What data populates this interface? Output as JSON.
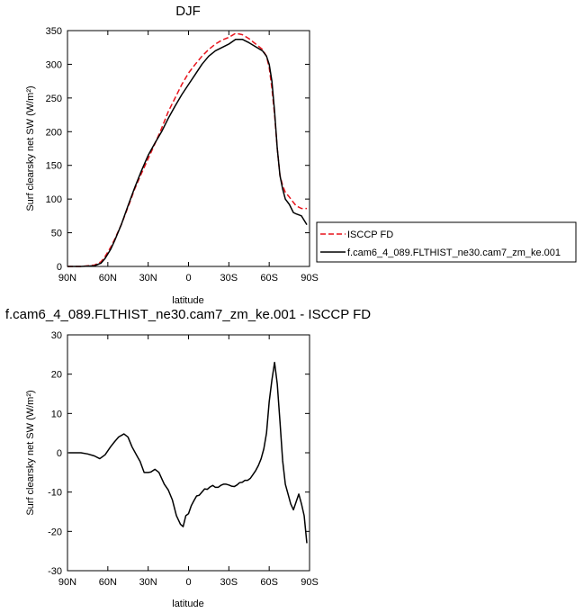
{
  "colors": {
    "obs": "#e8141c",
    "model": "#000000",
    "diff": "#000000"
  },
  "chart_data": [
    {
      "type": "line",
      "title": "DJF",
      "xlabel": "latitude",
      "ylabel": "Surf clearsky net SW (W/m²)",
      "xlim": [
        90,
        -90
      ],
      "ylim": [
        0,
        350
      ],
      "xticks": [
        90,
        60,
        30,
        0,
        -30,
        -60,
        -90
      ],
      "xtick_labels": [
        "90N",
        "60N",
        "30N",
        "0",
        "30S",
        "60S",
        "90S"
      ],
      "yticks": [
        0,
        50,
        100,
        150,
        200,
        250,
        300,
        350
      ],
      "ytick_labels": [
        "0",
        "50",
        "100",
        "150",
        "200",
        "250",
        "300",
        "350"
      ],
      "legend_position": "right",
      "series": [
        {
          "name": "ISCCP FD",
          "style": "dashed",
          "color": "#e8141c",
          "x": [
            90,
            80,
            70,
            65,
            62,
            58,
            55,
            50,
            45,
            40,
            35,
            30,
            25,
            20,
            15,
            10,
            5,
            0,
            -5,
            -10,
            -15,
            -20,
            -25,
            -30,
            -35,
            -40,
            -45,
            -50,
            -55,
            -58,
            -60,
            -62,
            -64,
            -66,
            -68,
            -70,
            -72,
            -75,
            -78,
            -80,
            -84,
            -88
          ],
          "y": [
            0,
            0,
            2,
            7,
            15,
            28,
            40,
            62,
            88,
            115,
            138,
            160,
            182,
            205,
            230,
            250,
            270,
            287,
            300,
            312,
            322,
            330,
            336,
            340,
            346,
            344,
            338,
            330,
            322,
            312,
            295,
            265,
            225,
            175,
            135,
            120,
            110,
            103,
            95,
            90,
            86,
            86
          ]
        },
        {
          "name": "f.cam6_4_089.FLTHIST_ne30.cam7_zm_ke.001",
          "style": "solid",
          "color": "#000000",
          "x": [
            90,
            80,
            70,
            65,
            62,
            58,
            55,
            50,
            45,
            40,
            35,
            30,
            25,
            20,
            15,
            10,
            5,
            0,
            -5,
            -10,
            -15,
            -20,
            -25,
            -30,
            -35,
            -40,
            -45,
            -50,
            -55,
            -58,
            -60,
            -62,
            -64,
            -66,
            -68,
            -70,
            -72,
            -75,
            -78,
            -80,
            -84,
            -88
          ],
          "y": [
            0,
            0,
            1,
            5,
            12,
            25,
            38,
            62,
            90,
            117,
            142,
            165,
            183,
            200,
            220,
            238,
            255,
            270,
            285,
            300,
            312,
            320,
            325,
            330,
            337,
            337,
            332,
            326,
            320,
            312,
            300,
            275,
            230,
            175,
            135,
            115,
            100,
            92,
            80,
            78,
            75,
            62
          ]
        }
      ]
    },
    {
      "type": "line",
      "title": "f.cam6_4_089.FLTHIST_ne30.cam7_zm_ke.001 - ISCCP FD",
      "xlabel": "latitude",
      "ylabel": "Surf clearsky net SW (W/m²)",
      "xlim": [
        90,
        -90
      ],
      "ylim": [
        -30,
        30
      ],
      "xticks": [
        90,
        60,
        30,
        0,
        -30,
        -60,
        -90
      ],
      "xtick_labels": [
        "90N",
        "60N",
        "30N",
        "0",
        "30S",
        "60S",
        "90S"
      ],
      "yticks": [
        -30,
        -20,
        -10,
        0,
        10,
        20,
        30
      ],
      "ytick_labels": [
        "-30",
        "-20",
        "-10",
        "0",
        "10",
        "20",
        "30"
      ],
      "series": [
        {
          "style": "solid",
          "color": "#000000",
          "x": [
            89,
            80,
            75,
            70,
            66,
            62,
            58,
            55,
            52,
            48,
            45,
            42,
            38,
            36,
            33,
            30,
            28,
            25,
            22,
            20,
            18,
            15,
            12,
            9,
            6,
            4,
            2,
            0,
            -2,
            -4,
            -6,
            -8,
            -10,
            -12,
            -14,
            -16,
            -18,
            -20,
            -22,
            -24,
            -26,
            -28,
            -30,
            -32,
            -34,
            -36,
            -38,
            -40,
            -42,
            -44,
            -46,
            -48,
            -50,
            -52,
            -54,
            -56,
            -58,
            -60,
            -62,
            -64,
            -66,
            -68,
            -70,
            -72,
            -74,
            -76,
            -78,
            -80,
            -82,
            -84,
            -86,
            -88
          ],
          "y": [
            0,
            0,
            -0.3,
            -0.8,
            -1.5,
            -0.5,
            1.5,
            2.8,
            4.0,
            4.8,
            4.0,
            1.5,
            -1.0,
            -2.2,
            -5.0,
            -5.0,
            -4.9,
            -4.2,
            -5.0,
            -6.5,
            -8.0,
            -9.5,
            -12,
            -16,
            -18.2,
            -18.8,
            -16,
            -15.5,
            -13.5,
            -12.2,
            -11.0,
            -10.8,
            -10.0,
            -9.2,
            -9.3,
            -8.7,
            -8.3,
            -8.8,
            -8.8,
            -8.3,
            -8.0,
            -8.0,
            -8.2,
            -8.5,
            -8.6,
            -8.2,
            -7.6,
            -7.5,
            -7.0,
            -7.0,
            -6.5,
            -5.5,
            -4.5,
            -3.2,
            -1.5,
            1.0,
            5.0,
            13.0,
            18.5,
            23.0,
            17.5,
            8.0,
            -2.0,
            -8.0,
            -10.5,
            -13.0,
            -14.5,
            -12.5,
            -10.5,
            -13.0,
            -16.0,
            -23.0
          ]
        }
      ]
    }
  ]
}
